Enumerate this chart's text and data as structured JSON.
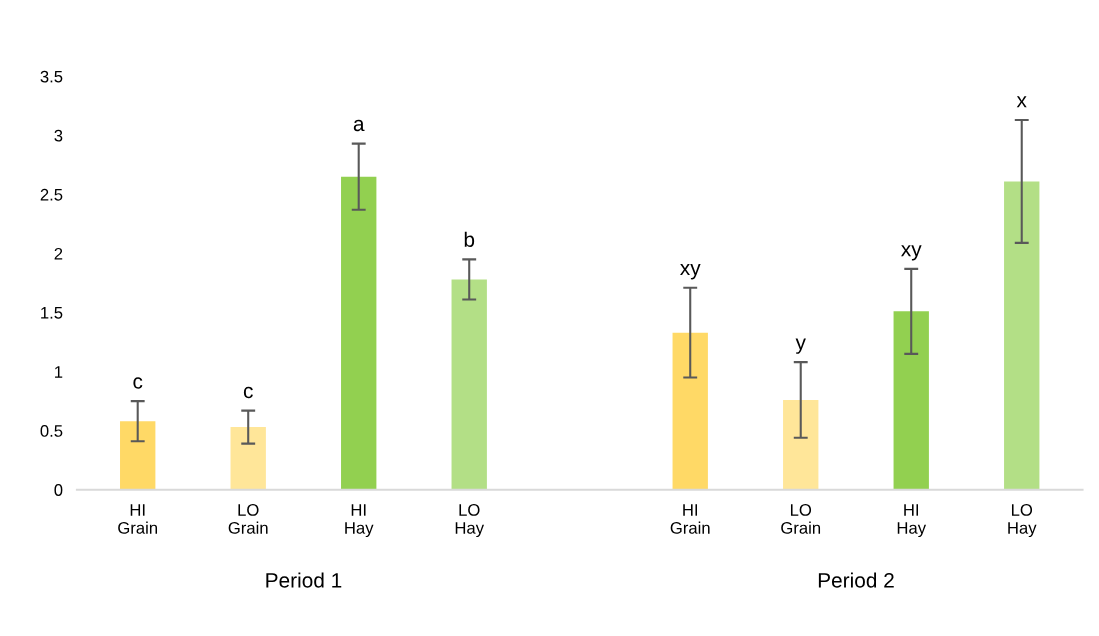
{
  "chart_data": {
    "type": "bar",
    "categories": [
      "HI\nGrain",
      "LO\nGrain",
      "HI\nHay",
      "LO\nHay",
      null,
      "HI\nGrain",
      "LO\nGrain",
      "HI\nHay",
      "LO\nHay"
    ],
    "values": [
      0.58,
      0.53,
      2.65,
      1.78,
      null,
      1.33,
      0.76,
      1.51,
      2.61
    ],
    "errors": [
      0.17,
      0.14,
      0.28,
      0.17,
      null,
      0.38,
      0.32,
      0.36,
      0.52
    ],
    "colors": [
      "#ffd966",
      "#ffe699",
      "#92d050",
      "#b3df86",
      null,
      "#ffd966",
      "#ffe699",
      "#92d050",
      "#b3df86"
    ],
    "ylim": [
      0,
      3.5
    ],
    "yticks": [
      0,
      0.5,
      1,
      1.5,
      2,
      2.5,
      3,
      3.5
    ],
    "grid": false,
    "annotations": [
      "c",
      "c",
      "a",
      "b",
      "xy",
      "y",
      "xy",
      "x",
      "Period 1",
      "Period 2"
    ]
  }
}
